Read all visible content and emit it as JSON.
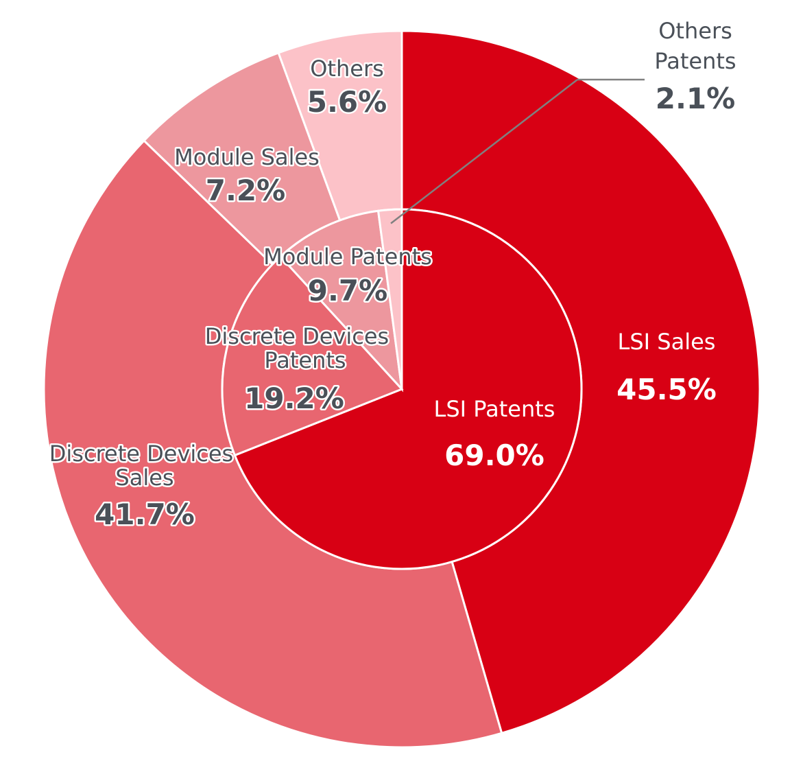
{
  "chart_data": {
    "type": "pie",
    "variant": "nested-donut",
    "outer_ring": {
      "slices": [
        {
          "label": "LSI Sales",
          "value": 45.5,
          "value_label": "45.5%",
          "color": "#d80014"
        },
        {
          "label": "Discrete Devices Sales",
          "label_lines": [
            "Discrete Devices",
            "Sales"
          ],
          "value": 41.7,
          "value_label": "41.7%",
          "color": "#e86670"
        },
        {
          "label": "Module Sales",
          "value": 7.2,
          "value_label": "7.2%",
          "color": "#ed979e"
        },
        {
          "label": "Others",
          "value": 5.6,
          "value_label": "5.6%",
          "color": "#fcc2c8"
        }
      ]
    },
    "inner_pie": {
      "slices": [
        {
          "label": "LSI Patents",
          "value": 69.0,
          "value_label": "69.0%",
          "color": "#d80014"
        },
        {
          "label": "Discrete Devices Patents",
          "label_lines": [
            "Discrete Devices",
            "Patents"
          ],
          "value": 19.2,
          "value_label": "19.2%",
          "color": "#e86670"
        },
        {
          "label": "Module Patents",
          "value": 9.7,
          "value_label": "9.7%",
          "color": "#ed979e"
        },
        {
          "label": "Others Patents",
          "label_lines": [
            "Others",
            "Patents"
          ],
          "value": 2.1,
          "value_label": "2.1%",
          "color": "#fcc2c8"
        }
      ]
    },
    "start_angle": "12 o'clock",
    "direction": "clockwise",
    "legend": "none"
  }
}
